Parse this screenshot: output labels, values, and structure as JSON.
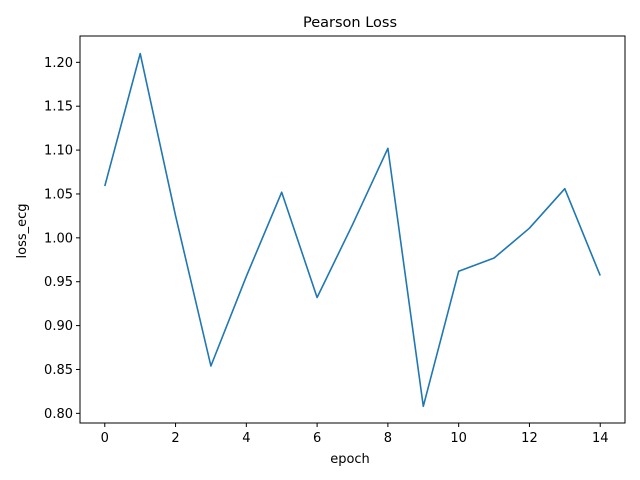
{
  "chart_data": {
    "type": "line",
    "title": "Pearson Loss",
    "xlabel": "epoch",
    "ylabel": "loss_ecg",
    "xlim": [
      -0.7,
      14.7
    ],
    "ylim": [
      0.789,
      1.23
    ],
    "xticks": [
      0,
      2,
      4,
      6,
      8,
      10,
      12,
      14
    ],
    "yticks": [
      "0.80",
      "0.85",
      "0.90",
      "0.95",
      "1.00",
      "1.05",
      "1.10",
      "1.15",
      "1.20"
    ],
    "grid": false,
    "legend": "none",
    "series": [
      {
        "color": "#1f77b4",
        "x": [
          0,
          1,
          2,
          3,
          4,
          5,
          6,
          7,
          8,
          9,
          10,
          11,
          12,
          13,
          14
        ],
        "y": [
          1.059,
          1.21,
          1.025,
          0.854,
          0.956,
          1.052,
          0.932,
          1.015,
          1.102,
          0.808,
          0.962,
          0.977,
          1.011,
          1.056,
          0.957
        ]
      }
    ]
  }
}
